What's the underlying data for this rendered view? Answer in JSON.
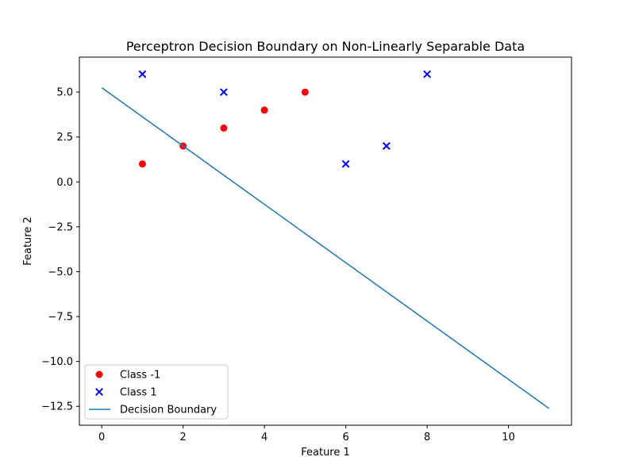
{
  "chart_data": {
    "type": "scatter",
    "title": "Perceptron Decision Boundary on Non-Linearly Separable Data",
    "xlabel": "Feature 1",
    "ylabel": "Feature 2",
    "xlim": [
      -0.55,
      11.55
    ],
    "ylim": [
      -13.55,
      6.95
    ],
    "xticks": [
      0,
      2,
      4,
      6,
      8,
      10
    ],
    "xtick_labels": [
      "0",
      "2",
      "4",
      "6",
      "8",
      "10"
    ],
    "yticks": [
      5.0,
      2.5,
      0.0,
      -2.5,
      -5.0,
      -7.5,
      -10.0,
      -12.5
    ],
    "ytick_labels": [
      "5.0",
      "2.5",
      "0.0",
      "−2.5",
      "−5.0",
      "−7.5",
      "−10.0",
      "−12.5"
    ],
    "grid": false,
    "legend_position": "lower-left",
    "series": [
      {
        "name": "Class -1",
        "kind": "scatter",
        "marker": "circle",
        "color": "#ff0000",
        "points": [
          [
            1,
            1
          ],
          [
            2,
            2
          ],
          [
            3,
            3
          ],
          [
            4,
            4
          ],
          [
            5,
            5
          ]
        ]
      },
      {
        "name": "Class 1",
        "kind": "scatter",
        "marker": "x",
        "color": "#0000ff",
        "points": [
          [
            1,
            6
          ],
          [
            3,
            5
          ],
          [
            6,
            1
          ],
          [
            7,
            2
          ],
          [
            8,
            6
          ]
        ]
      },
      {
        "name": "Decision Boundary",
        "kind": "line",
        "color": "#1f77b4",
        "points": [
          [
            0,
            5.25
          ],
          [
            11,
            -12.62
          ]
        ]
      }
    ]
  }
}
